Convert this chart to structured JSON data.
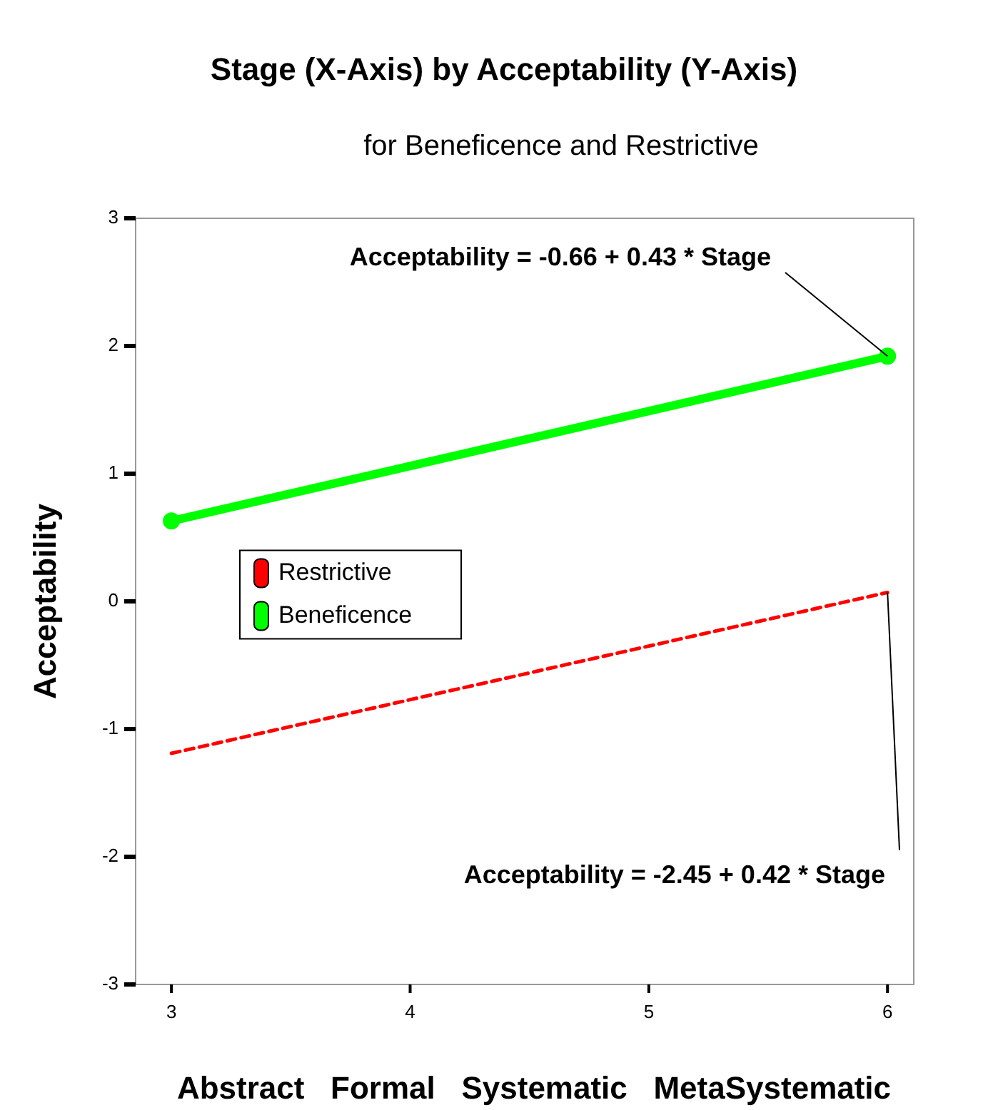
{
  "chart_data": {
    "type": "line",
    "title": "Stage (X-Axis) by Acceptability (Y-Axis)",
    "subtitle": "for Beneficence and Restrictive",
    "xlabel": "Abstract   Formal   Systematic   MetaSystematic",
    "ylabel": "Acceptability",
    "x": [
      3,
      6
    ],
    "xlim": [
      2.85,
      6.11
    ],
    "xticks": [
      3,
      4,
      5,
      6
    ],
    "ylim": [
      -3,
      3
    ],
    "yticks": [
      -3,
      -2,
      -1,
      0,
      1,
      2,
      3
    ],
    "grid": false,
    "legend": "left",
    "series": [
      {
        "name": "Restrictive",
        "color": "#ff0000",
        "values": [
          -1.19,
          0.07
        ],
        "line_style": "dashed",
        "marker": "none"
      },
      {
        "name": "Beneficence",
        "color": "#00ff00",
        "values": [
          0.63,
          1.92
        ],
        "line_style": "solid",
        "marker": "circle"
      }
    ],
    "annotations": [
      {
        "text": "Acceptability = -0.66 + 0.43 * Stage",
        "x": 6,
        "y": 1.92
      },
      {
        "text": "Acceptability = -2.45 + 0.42 * Stage",
        "x": 6,
        "y": 0.07
      }
    ]
  }
}
